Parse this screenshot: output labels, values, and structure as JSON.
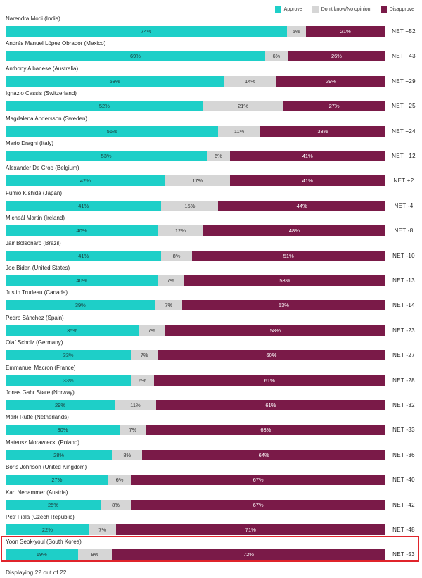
{
  "legend": {
    "approve": "Approve",
    "unsure": "Don't know/No opinion",
    "disapprove": "Disapprove"
  },
  "colors": {
    "approve": "#1ecfc8",
    "unsure": "#d6d6d6",
    "disapprove": "#7a1a48"
  },
  "chart_data": {
    "type": "bar",
    "orientation": "horizontal",
    "stacked": true,
    "title": "",
    "series_names": [
      "Approve",
      "Don't know/No opinion",
      "Disapprove"
    ],
    "rows": [
      {
        "label": "Narendra Modi (India)",
        "approve": 74,
        "unsure": 5,
        "disapprove": 21,
        "net": "NET +52"
      },
      {
        "label": "Andrés Manuel López Obrador (Mexico)",
        "approve": 69,
        "unsure": 6,
        "disapprove": 26,
        "net": "NET +43"
      },
      {
        "label": "Anthony Albanese (Australia)",
        "approve": 58,
        "unsure": 14,
        "disapprove": 29,
        "net": "NET +29"
      },
      {
        "label": "Ignazio Cassis (Switzerland)",
        "approve": 52,
        "unsure": 21,
        "disapprove": 27,
        "net": "NET +25"
      },
      {
        "label": "Magdalena Andersson (Sweden)",
        "approve": 56,
        "unsure": 11,
        "disapprove": 33,
        "net": "NET +24"
      },
      {
        "label": "Mario Draghi (Italy)",
        "approve": 53,
        "unsure": 6,
        "disapprove": 41,
        "net": "NET +12"
      },
      {
        "label": "Alexander De Croo (Belgium)",
        "approve": 42,
        "unsure": 17,
        "disapprove": 41,
        "net": "NET +2"
      },
      {
        "label": "Fumio Kishida (Japan)",
        "approve": 41,
        "unsure": 15,
        "disapprove": 44,
        "net": "NET -4"
      },
      {
        "label": "Micheál Martin (Ireland)",
        "approve": 40,
        "unsure": 12,
        "disapprove": 48,
        "net": "NET -8"
      },
      {
        "label": "Jair Bolsonaro (Brazil)",
        "approve": 41,
        "unsure": 8,
        "disapprove": 51,
        "net": "NET -10"
      },
      {
        "label": "Joe Biden (United States)",
        "approve": 40,
        "unsure": 7,
        "disapprove": 53,
        "net": "NET -13"
      },
      {
        "label": "Justin Trudeau (Canada)",
        "approve": 39,
        "unsure": 7,
        "disapprove": 53,
        "net": "NET -14"
      },
      {
        "label": "Pedro Sánchez (Spain)",
        "approve": 35,
        "unsure": 7,
        "disapprove": 58,
        "net": "NET -23"
      },
      {
        "label": "Olaf Scholz (Germany)",
        "approve": 33,
        "unsure": 7,
        "disapprove": 60,
        "net": "NET -27"
      },
      {
        "label": "Emmanuel Macron (France)",
        "approve": 33,
        "unsure": 6,
        "disapprove": 61,
        "net": "NET -28"
      },
      {
        "label": "Jonas Gahr Støre (Norway)",
        "approve": 29,
        "unsure": 11,
        "disapprove": 61,
        "net": "NET -32"
      },
      {
        "label": "Mark Rutte (Netherlands)",
        "approve": 30,
        "unsure": 7,
        "disapprove": 63,
        "net": "NET -33"
      },
      {
        "label": "Mateusz Morawiecki (Poland)",
        "approve": 28,
        "unsure": 8,
        "disapprove": 64,
        "net": "NET -36"
      },
      {
        "label": "Boris Johnson (United Kingdom)",
        "approve": 27,
        "unsure": 6,
        "disapprove": 67,
        "net": "NET -40"
      },
      {
        "label": "Karl Nehammer (Austria)",
        "approve": 25,
        "unsure": 8,
        "disapprove": 67,
        "net": "NET -42"
      },
      {
        "label": "Petr Fiala (Czech Republic)",
        "approve": 22,
        "unsure": 7,
        "disapprove": 71,
        "net": "NET -48"
      },
      {
        "label": "Yoon Seok-youl (South Korea)",
        "approve": 19,
        "unsure": 9,
        "disapprove": 72,
        "net": "NET -53"
      }
    ]
  },
  "footer": {
    "text": "Displaying 22 out of 22"
  }
}
